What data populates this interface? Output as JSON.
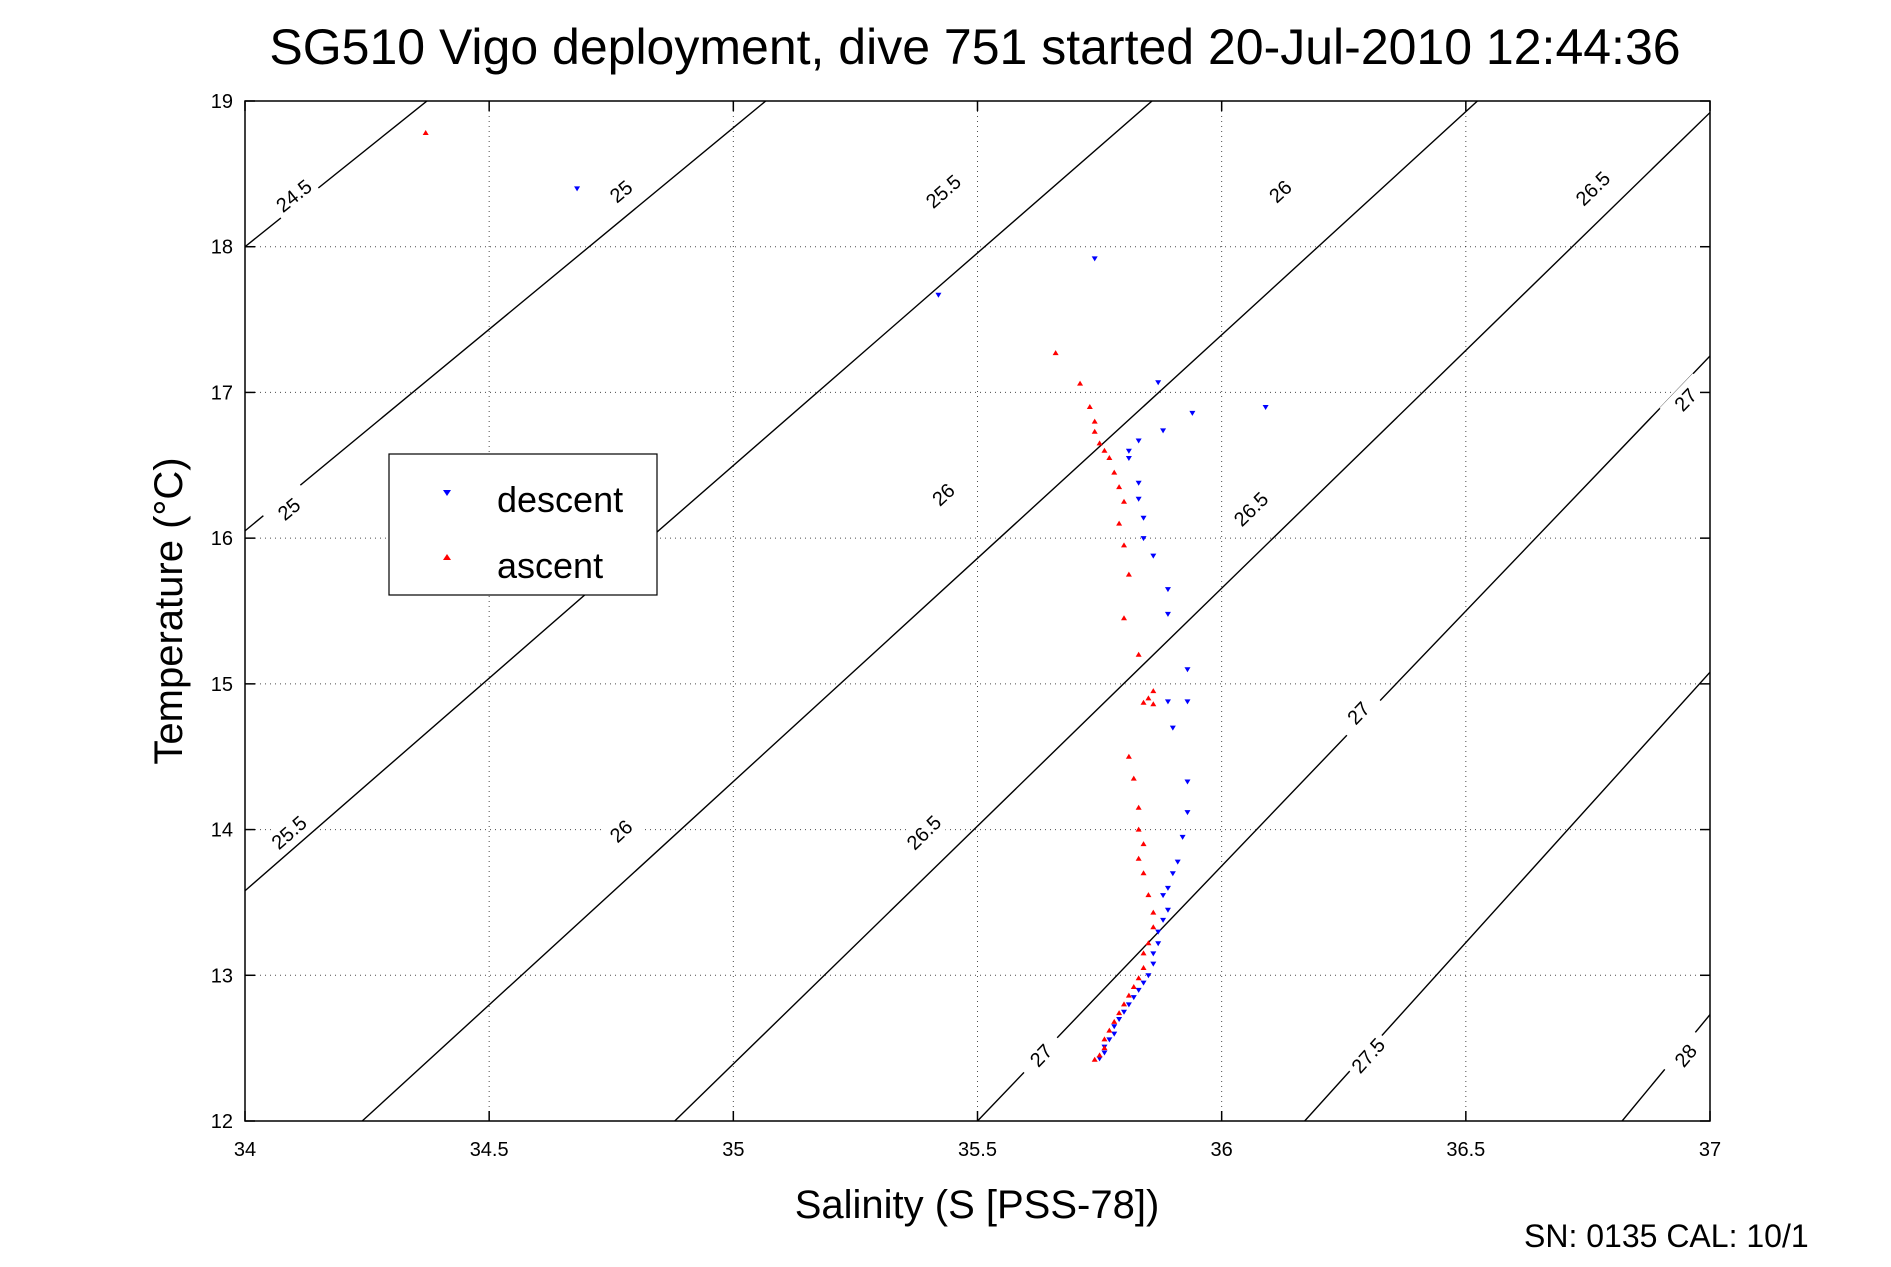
{
  "chart_data": {
    "type": "scatter",
    "title": "SG510 Vigo deployment, dive 751 started 20-Jul-2010 12:44:36",
    "xlabel": "Salinity (S [PSS-78])",
    "ylabel": "Temperature (°C)",
    "xlim": [
      34,
      37
    ],
    "ylim": [
      12,
      19
    ],
    "x_ticks": [
      34,
      34.5,
      35,
      35.5,
      36,
      36.5,
      37
    ],
    "x_tick_labels": [
      "34",
      "34.5",
      "35",
      "35.5",
      "36",
      "36.5",
      "37"
    ],
    "y_ticks": [
      12,
      13,
      14,
      15,
      16,
      17,
      18,
      19
    ],
    "y_tick_labels": [
      "12",
      "13",
      "14",
      "15",
      "16",
      "17",
      "18",
      "19"
    ],
    "grid": true,
    "legend_position": "left",
    "footer": "SN: 0135  CAL: 10/1",
    "density_contours": [
      {
        "level": 24.5,
        "points": [
          [
            34.0,
            18.0
          ],
          [
            34.95,
            20.55
          ]
        ],
        "labels": [
          {
            "text": "24.5",
            "x": 34.1,
            "y": 18.35
          }
        ]
      },
      {
        "level": 25.0,
        "points": [
          [
            34.0,
            16.05
          ],
          [
            35.5,
            20.2
          ]
        ],
        "labels": [
          {
            "text": "25",
            "x": 34.09,
            "y": 16.2
          },
          {
            "text": "25",
            "x": 34.77,
            "y": 18.38
          }
        ]
      },
      {
        "level": 25.5,
        "points": [
          [
            34.0,
            13.58
          ],
          [
            36.2,
            20.0
          ]
        ],
        "labels": [
          {
            "text": "25.5",
            "x": 34.09,
            "y": 13.98
          },
          {
            "text": "25.5",
            "x": 35.43,
            "y": 18.38
          }
        ]
      },
      {
        "level": 26.0,
        "points": [
          [
            34.24,
            12.0
          ],
          [
            36.85,
            20.0
          ]
        ],
        "labels": [
          {
            "text": "26",
            "x": 34.77,
            "y": 13.99
          },
          {
            "text": "26",
            "x": 35.43,
            "y": 16.3
          },
          {
            "text": "26",
            "x": 36.12,
            "y": 18.38
          }
        ]
      },
      {
        "level": 26.5,
        "points": [
          [
            34.88,
            12.0
          ],
          [
            37.3,
            19.9
          ]
        ],
        "labels": [
          {
            "text": "26.5",
            "x": 35.39,
            "y": 13.98
          },
          {
            "text": "26.5",
            "x": 36.06,
            "y": 16.2
          },
          {
            "text": "26.5",
            "x": 36.76,
            "y": 18.4
          }
        ]
      },
      {
        "level": 27.0,
        "points": [
          [
            35.5,
            12.0
          ],
          [
            37.0,
            17.25
          ]
        ],
        "labels": [
          {
            "text": "27",
            "x": 35.63,
            "y": 12.45
          },
          {
            "text": "27",
            "x": 36.28,
            "y": 14.8
          },
          {
            "text": "27",
            "x": 36.95,
            "y": 16.95
          }
        ]
      },
      {
        "level": 27.5,
        "points": [
          [
            36.17,
            12.0
          ],
          [
            37.0,
            15.08
          ]
        ],
        "labels": [
          {
            "text": "27.5",
            "x": 36.3,
            "y": 12.45
          }
        ]
      },
      {
        "level": 28.0,
        "points": [
          [
            36.82,
            12.0
          ],
          [
            37.0,
            12.73
          ]
        ],
        "labels": [
          {
            "text": "28",
            "x": 36.95,
            "y": 12.45
          }
        ]
      }
    ],
    "series": [
      {
        "name": "descent",
        "marker": "triangle-down",
        "color": "#0000ff",
        "points": [
          [
            34.68,
            18.4
          ],
          [
            35.42,
            17.67
          ],
          [
            35.74,
            17.92
          ],
          [
            35.87,
            17.07
          ],
          [
            35.94,
            16.86
          ],
          [
            36.09,
            16.9
          ],
          [
            35.88,
            16.74
          ],
          [
            35.83,
            16.67
          ],
          [
            35.81,
            16.6
          ],
          [
            35.81,
            16.55
          ],
          [
            35.83,
            16.38
          ],
          [
            35.83,
            16.27
          ],
          [
            35.84,
            16.14
          ],
          [
            35.84,
            16.0
          ],
          [
            35.86,
            15.88
          ],
          [
            35.89,
            15.65
          ],
          [
            35.89,
            15.48
          ],
          [
            35.93,
            15.1
          ],
          [
            35.93,
            14.88
          ],
          [
            35.89,
            14.88
          ],
          [
            35.9,
            14.7
          ],
          [
            35.93,
            14.33
          ],
          [
            35.93,
            14.12
          ],
          [
            35.92,
            13.95
          ],
          [
            35.91,
            13.78
          ],
          [
            35.9,
            13.7
          ],
          [
            35.89,
            13.6
          ],
          [
            35.88,
            13.55
          ],
          [
            35.89,
            13.45
          ],
          [
            35.88,
            13.38
          ],
          [
            35.87,
            13.3
          ],
          [
            35.87,
            13.22
          ],
          [
            35.86,
            13.15
          ],
          [
            35.86,
            13.08
          ],
          [
            35.85,
            13.0
          ],
          [
            35.84,
            12.95
          ],
          [
            35.83,
            12.9
          ],
          [
            35.82,
            12.85
          ],
          [
            35.81,
            12.8
          ],
          [
            35.8,
            12.75
          ],
          [
            35.79,
            12.7
          ],
          [
            35.78,
            12.65
          ],
          [
            35.78,
            12.6
          ],
          [
            35.77,
            12.56
          ],
          [
            35.76,
            12.51
          ],
          [
            35.76,
            12.47
          ],
          [
            35.75,
            12.43
          ]
        ]
      },
      {
        "name": "ascent",
        "marker": "triangle-up",
        "color": "#ff0000",
        "points": [
          [
            34.37,
            18.78
          ],
          [
            35.66,
            17.27
          ],
          [
            35.71,
            17.06
          ],
          [
            35.73,
            16.9
          ],
          [
            35.74,
            16.8
          ],
          [
            35.74,
            16.73
          ],
          [
            35.75,
            16.65
          ],
          [
            35.76,
            16.6
          ],
          [
            35.77,
            16.55
          ],
          [
            35.78,
            16.45
          ],
          [
            35.79,
            16.35
          ],
          [
            35.8,
            16.25
          ],
          [
            35.79,
            16.1
          ],
          [
            35.8,
            15.95
          ],
          [
            35.81,
            15.75
          ],
          [
            35.8,
            15.45
          ],
          [
            35.83,
            15.2
          ],
          [
            35.86,
            14.95
          ],
          [
            35.85,
            14.9
          ],
          [
            35.86,
            14.86
          ],
          [
            35.84,
            14.87
          ],
          [
            35.81,
            14.5
          ],
          [
            35.82,
            14.35
          ],
          [
            35.83,
            14.15
          ],
          [
            35.83,
            14.0
          ],
          [
            35.84,
            13.9
          ],
          [
            35.83,
            13.8
          ],
          [
            35.84,
            13.7
          ],
          [
            35.85,
            13.55
          ],
          [
            35.86,
            13.43
          ],
          [
            35.86,
            13.33
          ],
          [
            35.85,
            13.22
          ],
          [
            35.84,
            13.15
          ],
          [
            35.84,
            13.05
          ],
          [
            35.83,
            12.98
          ],
          [
            35.82,
            12.92
          ],
          [
            35.81,
            12.86
          ],
          [
            35.8,
            12.8
          ],
          [
            35.79,
            12.74
          ],
          [
            35.78,
            12.68
          ],
          [
            35.77,
            12.62
          ],
          [
            35.76,
            12.56
          ],
          [
            35.76,
            12.5
          ],
          [
            35.75,
            12.45
          ],
          [
            35.74,
            12.42
          ]
        ]
      }
    ]
  }
}
